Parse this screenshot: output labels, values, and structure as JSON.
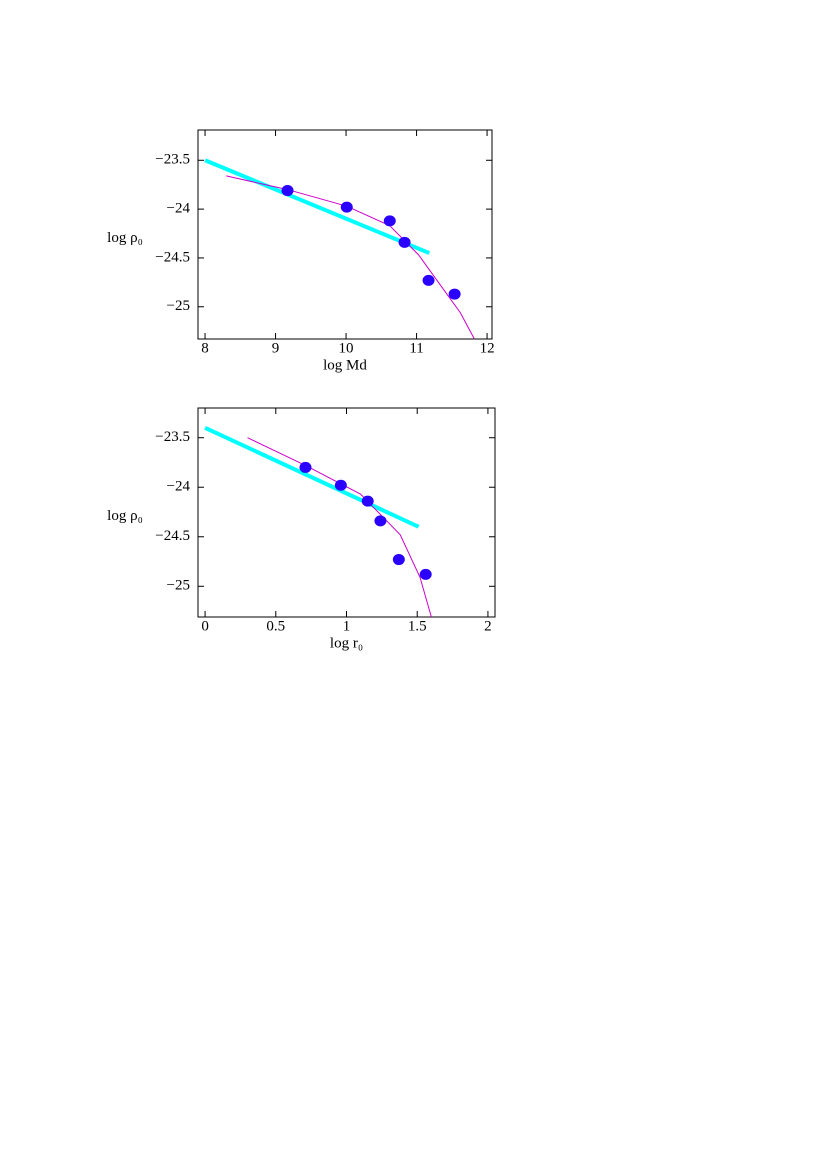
{
  "chart_data": [
    {
      "type": "scatter",
      "xlabel": "log Md",
      "ylabel": "log ρ₀",
      "xlim": [
        7.9,
        12.07
      ],
      "ylim": [
        -25.33,
        -23.19
      ],
      "xticks": [
        8,
        9,
        10,
        11,
        12
      ],
      "yticks": [
        {
          "value": -23.5,
          "label": "−23.5"
        },
        {
          "value": -24,
          "label": "−24"
        },
        {
          "value": -24.5,
          "label": "−24.5"
        },
        {
          "value": -25,
          "label": "−25"
        }
      ],
      "series": [
        {
          "style": "line",
          "color": "#00ffff",
          "x": [
            8,
            11.18
          ],
          "values": [
            -23.5,
            -24.45
          ]
        },
        {
          "style": "curve",
          "color": "#cc00cc",
          "x": [
            8.3,
            9.17,
            10.01,
            10.62,
            11.03,
            11.38,
            11.62,
            11.82
          ],
          "values": [
            -23.66,
            -23.8,
            -23.97,
            -24.17,
            -24.47,
            -24.82,
            -25.06,
            -25.33
          ]
        },
        {
          "style": "markers",
          "color": "#2a00ff",
          "x": [
            9.17,
            10.01,
            10.62,
            10.83,
            11.17,
            11.54
          ],
          "values": [
            -23.81,
            -23.98,
            -24.12,
            -24.34,
            -24.73,
            -24.87
          ]
        }
      ]
    },
    {
      "type": "scatter",
      "xlabel": "log r₀",
      "ylabel": "log ρ₀",
      "xlim": [
        -0.05,
        2.05
      ],
      "ylim": [
        -25.31,
        -23.2
      ],
      "xticks": [
        0,
        0.5,
        1,
        1.5,
        2
      ],
      "yticks": [
        {
          "value": -23.5,
          "label": "−23.5"
        },
        {
          "value": -24,
          "label": "−24"
        },
        {
          "value": -24.5,
          "label": "−24.5"
        },
        {
          "value": -25,
          "label": "−25"
        }
      ],
      "series": [
        {
          "style": "line",
          "color": "#00ffff",
          "x": [
            0,
            1.51
          ],
          "values": [
            -23.4,
            -24.4
          ]
        },
        {
          "style": "curve",
          "color": "#cc00cc",
          "x": [
            0.3,
            0.71,
            1.1,
            1.38,
            1.52,
            1.6
          ],
          "values": [
            -23.5,
            -23.78,
            -24.07,
            -24.48,
            -24.91,
            -25.31
          ]
        },
        {
          "style": "markers",
          "color": "#2a00ff",
          "x": [
            0.71,
            0.96,
            1.15,
            1.24,
            1.37,
            1.56
          ],
          "values": [
            -23.8,
            -23.98,
            -24.14,
            -24.34,
            -24.73,
            -24.88
          ]
        }
      ]
    }
  ]
}
